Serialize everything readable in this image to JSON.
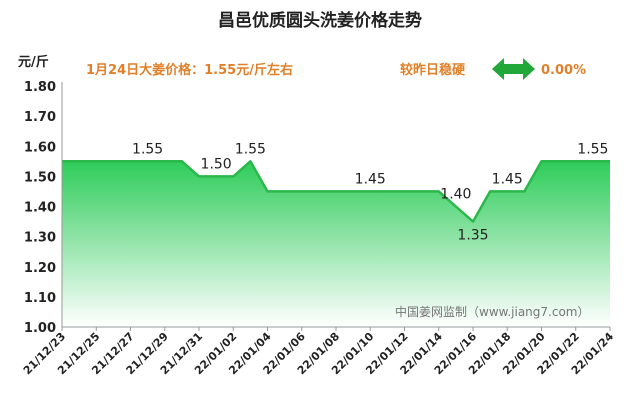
{
  "chart_data": {
    "type": "area",
    "title": "昌邑优质圆头洗姜价格走势",
    "ylabel": "元/斤",
    "ylim": [
      1.0,
      1.8
    ],
    "yticks": [
      "1.00",
      "1.10",
      "1.20",
      "1.30",
      "1.40",
      "1.50",
      "1.60",
      "1.70",
      "1.80"
    ],
    "xticks": [
      "21/12/23",
      "21/12/25",
      "21/12/27",
      "21/12/29",
      "21/12/31",
      "22/01/02",
      "22/01/04",
      "22/01/06",
      "22/01/08",
      "22/01/10",
      "22/01/12",
      "22/01/14",
      "22/01/16",
      "22/01/18",
      "22/01/20",
      "22/01/22",
      "22/01/24"
    ],
    "x": [
      "21/12/23",
      "21/12/24",
      "21/12/25",
      "21/12/26",
      "21/12/27",
      "21/12/28",
      "21/12/29",
      "21/12/30",
      "21/12/31",
      "22/01/01",
      "22/01/02",
      "22/01/03",
      "22/01/04",
      "22/01/05",
      "22/01/06",
      "22/01/07",
      "22/01/08",
      "22/01/09",
      "22/01/10",
      "22/01/11",
      "22/01/12",
      "22/01/13",
      "22/01/14",
      "22/01/15",
      "22/01/16",
      "22/01/17",
      "22/01/18",
      "22/01/19",
      "22/01/20",
      "22/01/21",
      "22/01/22",
      "22/01/23",
      "22/01/24"
    ],
    "values": [
      1.55,
      1.55,
      1.55,
      1.55,
      1.55,
      1.55,
      1.55,
      1.55,
      1.5,
      1.5,
      1.5,
      1.55,
      1.45,
      1.45,
      1.45,
      1.45,
      1.45,
      1.45,
      1.45,
      1.45,
      1.45,
      1.45,
      1.45,
      1.4,
      1.35,
      1.45,
      1.45,
      1.45,
      1.55,
      1.55,
      1.55,
      1.55,
      1.55
    ],
    "data_labels": [
      {
        "index": 5,
        "text": "1.55"
      },
      {
        "index": 9,
        "text": "1.50"
      },
      {
        "index": 11,
        "text": "1.55"
      },
      {
        "index": 18,
        "text": "1.45"
      },
      {
        "index": 23,
        "text": "1.40"
      },
      {
        "index": 24,
        "text": "1.35"
      },
      {
        "index": 26,
        "text": "1.45"
      },
      {
        "index": 31,
        "text": "1.55"
      }
    ],
    "grid": false,
    "colors": {
      "line": "#2bb84a",
      "fill_top": "#2ecc5a",
      "fill_bottom": "#ffffff"
    }
  },
  "annotation": {
    "price_text": "1月24日大姜价格：1.55元/斤左右",
    "compare_text": "较昨日稳硬",
    "change_text": "0.00%",
    "arrow_icon": "double-arrow-icon"
  },
  "watermark": "中国姜网监制（www.jiang7.com）"
}
